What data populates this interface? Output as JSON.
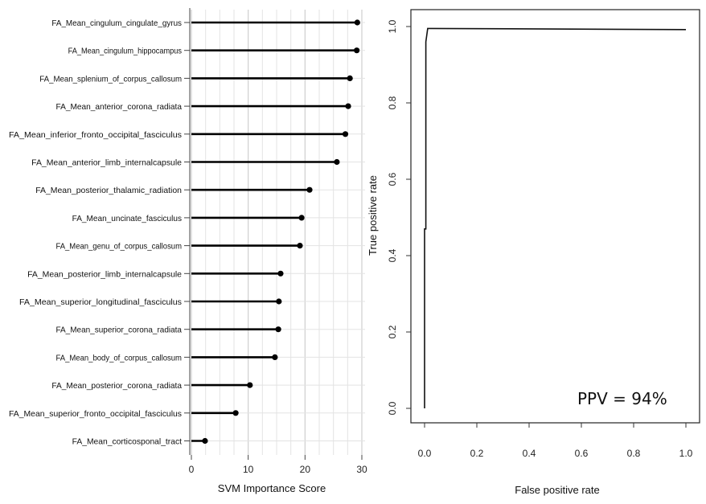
{
  "chart_data": [
    {
      "type": "lollipop",
      "orientation": "horizontal",
      "xlabel": "SVM Importance Score",
      "xlim": [
        0,
        30
      ],
      "xticks": [
        0,
        10,
        20,
        30
      ],
      "grid": true,
      "categories": [
        "FA_Mean_cingulum_cingulate_gyrus",
        "FA_Mean_cingulum_hippocampus",
        "FA_Mean_splenium_of_corpus_callosum",
        "FA_Mean_anterior_corona_radiata",
        "FA_Mean_inferior_fronto_occipital_fasciculus",
        "FA_Mean_anterior_limb_internalcapsule",
        "FA_Mean_posterior_thalamic_radiation",
        "FA_Mean_uncinate_fasciculus",
        "FA_Mean_genu_of_corpus_callosum",
        "FA_Mean_posterior_limb_internalcapsule",
        "FA_Mean_superior_longitudinal_fasciculus",
        "FA_Mean_superior_corona_radiata",
        "FA_Mean_body_of_corpus_callosum",
        "FA_Mean_posterior_corona_radiata",
        "FA_Mean_superior_fronto_occipital_fasciculus",
        "FA_Mean_corticosponal_tract"
      ],
      "values": [
        29.2,
        29.1,
        27.9,
        27.6,
        27.1,
        25.6,
        20.8,
        19.4,
        19.1,
        15.7,
        15.4,
        15.3,
        14.7,
        10.3,
        7.8,
        2.4
      ]
    },
    {
      "type": "line",
      "xlabel": "False positive rate",
      "ylabel": "True positive rate",
      "xlim": [
        0,
        1
      ],
      "ylim": [
        0,
        1
      ],
      "xticks": [
        "0.0",
        "0.2",
        "0.4",
        "0.6",
        "0.8",
        "1.0"
      ],
      "yticks": [
        "0.0",
        "0.2",
        "0.4",
        "0.6",
        "0.8",
        "1.0"
      ],
      "series": [
        {
          "x": [
            0.0,
            0.0,
            0.005,
            0.005,
            0.012,
            0.02,
            1.0
          ],
          "y": [
            0.0,
            0.47,
            0.47,
            0.96,
            0.995,
            0.995,
            0.992
          ]
        }
      ],
      "annotation": "PPV = 94%"
    }
  ]
}
